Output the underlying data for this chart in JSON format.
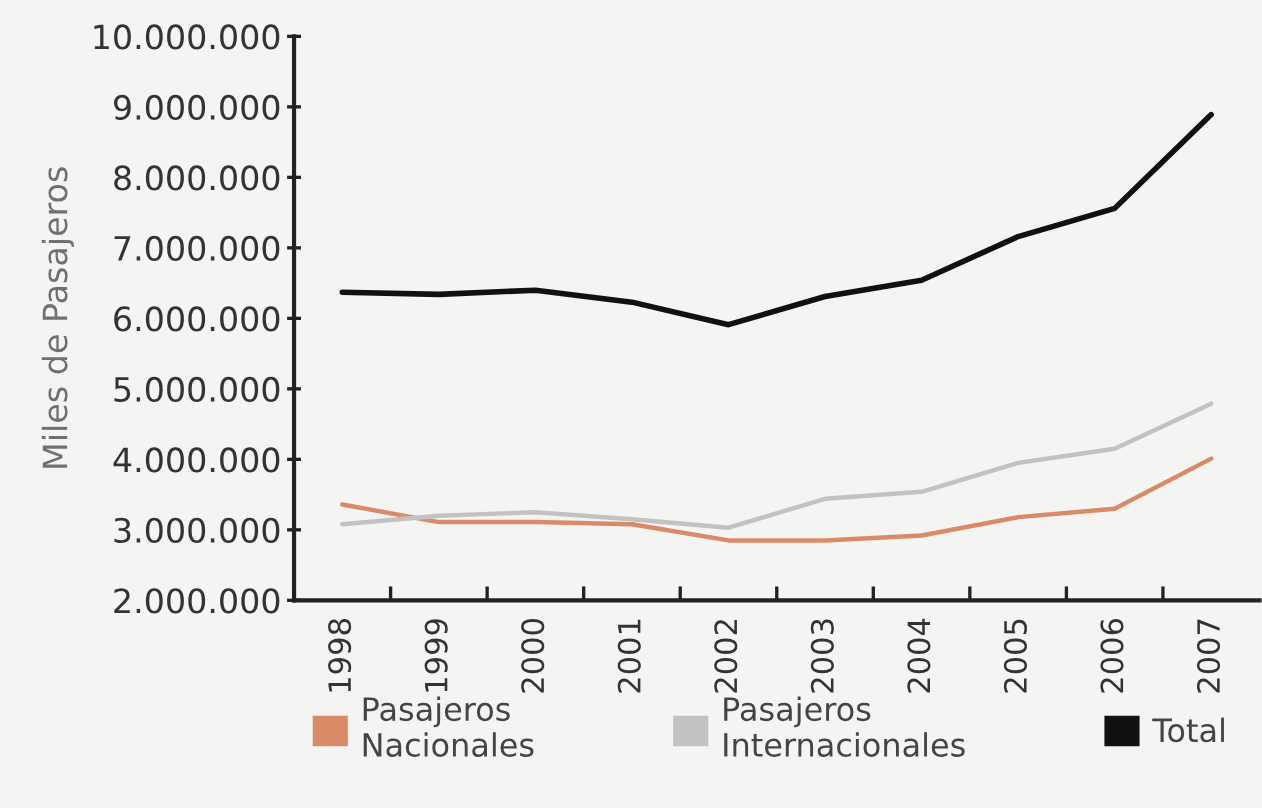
{
  "chart_data": {
    "type": "line",
    "categories": [
      "1998",
      "1999",
      "2000",
      "2001",
      "2002",
      "2003",
      "2004",
      "2005",
      "2006",
      "2007"
    ],
    "series": [
      {
        "name": "Pasajeros\nNacionales",
        "color": "#d98b68",
        "values": [
          3360000,
          3110000,
          3110000,
          3080000,
          2850000,
          2850000,
          2920000,
          3180000,
          3300000,
          4010000
        ]
      },
      {
        "name": "Pasajeros\nInternacionales",
        "color": "#c2c2c2",
        "values": [
          3080000,
          3200000,
          3250000,
          3150000,
          3030000,
          3440000,
          3540000,
          3950000,
          4150000,
          4790000
        ]
      },
      {
        "name": "Total",
        "color": "#111111",
        "values": [
          6370000,
          6340000,
          6400000,
          6230000,
          5910000,
          6310000,
          6540000,
          7160000,
          7560000,
          8890000
        ]
      }
    ],
    "ylabel": "Miles de Pasajeros",
    "ylim": [
      2000000,
      10000000
    ],
    "yticks": [
      {
        "value": 2000000,
        "label": "2.000.000"
      },
      {
        "value": 3000000,
        "label": "3.000.000"
      },
      {
        "value": 4000000,
        "label": "4.000.000"
      },
      {
        "value": 5000000,
        "label": "5.000.000"
      },
      {
        "value": 6000000,
        "label": "6.000.000"
      },
      {
        "value": 7000000,
        "label": "7.000.000"
      },
      {
        "value": 8000000,
        "label": "8.000.000"
      },
      {
        "value": 9000000,
        "label": "9.000.000"
      },
      {
        "value": 10000000,
        "label": "10.000.000"
      }
    ],
    "legend": "bottom"
  }
}
